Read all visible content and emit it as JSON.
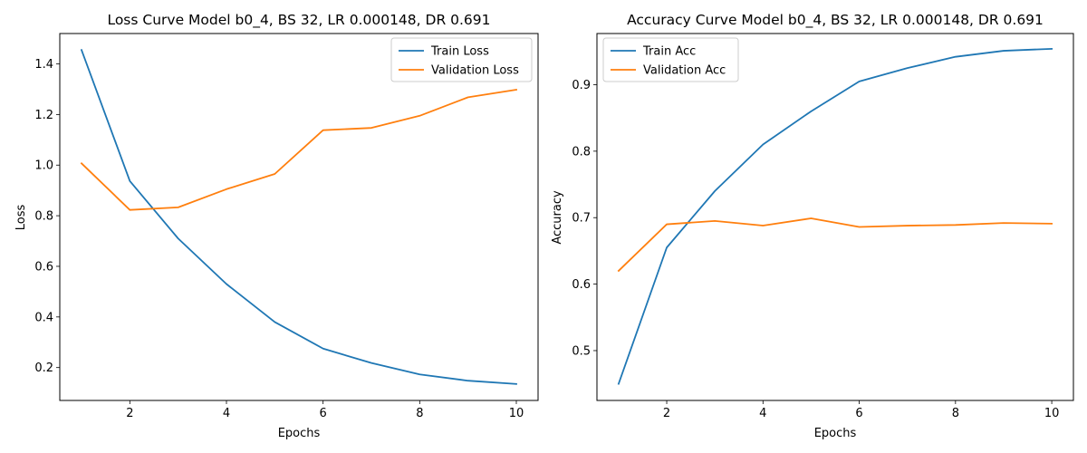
{
  "chart_data": [
    {
      "type": "line",
      "title": "Loss Curve Model b0_4, BS 32, LR 0.000148, DR 0.691",
      "xlabel": "Epochs",
      "ylabel": "Loss",
      "x": [
        1,
        2,
        3,
        4,
        5,
        6,
        7,
        8,
        9,
        10
      ],
      "xlim": [
        0.55,
        10.45
      ],
      "ylim": [
        0.07,
        1.52
      ],
      "xticks": [
        2,
        4,
        6,
        8,
        10
      ],
      "xtick_labels": [
        "2",
        "4",
        "6",
        "8",
        "10"
      ],
      "yticks": [
        0.2,
        0.4,
        0.6,
        0.8,
        1.0,
        1.2,
        1.4
      ],
      "ytick_labels": [
        "0.2",
        "0.4",
        "0.6",
        "0.8",
        "1.0",
        "1.2",
        "1.4"
      ],
      "grid": false,
      "legend_position": "top-right",
      "series": [
        {
          "name": "Train Loss",
          "color": "#1f77b4",
          "values": [
            1.455,
            0.937,
            0.71,
            0.53,
            0.38,
            0.275,
            0.218,
            0.173,
            0.148,
            0.135
          ]
        },
        {
          "name": "Validation Loss",
          "color": "#ff7f0e",
          "values": [
            1.007,
            0.823,
            0.833,
            0.905,
            0.965,
            1.138,
            1.147,
            1.195,
            1.268,
            1.298
          ]
        }
      ]
    },
    {
      "type": "line",
      "title": "Accuracy Curve Model b0_4, BS 32, LR 0.000148, DR 0.691",
      "xlabel": "Epochs",
      "ylabel": "Accuracy",
      "x": [
        1,
        2,
        3,
        4,
        5,
        6,
        7,
        8,
        9,
        10
      ],
      "xlim": [
        0.55,
        10.45
      ],
      "ylim": [
        0.425,
        0.977
      ],
      "xticks": [
        2,
        4,
        6,
        8,
        10
      ],
      "xtick_labels": [
        "2",
        "4",
        "6",
        "8",
        "10"
      ],
      "yticks": [
        0.5,
        0.6,
        0.7,
        0.8,
        0.9
      ],
      "ytick_labels": [
        "0.5",
        "0.6",
        "0.7",
        "0.8",
        "0.9"
      ],
      "grid": false,
      "legend_position": "top-left",
      "series": [
        {
          "name": "Train Acc",
          "color": "#1f77b4",
          "values": [
            0.45,
            0.655,
            0.74,
            0.81,
            0.86,
            0.905,
            0.925,
            0.942,
            0.951,
            0.954
          ]
        },
        {
          "name": "Validation Acc",
          "color": "#ff7f0e",
          "values": [
            0.62,
            0.69,
            0.695,
            0.688,
            0.699,
            0.686,
            0.688,
            0.689,
            0.692,
            0.691
          ]
        }
      ]
    }
  ]
}
